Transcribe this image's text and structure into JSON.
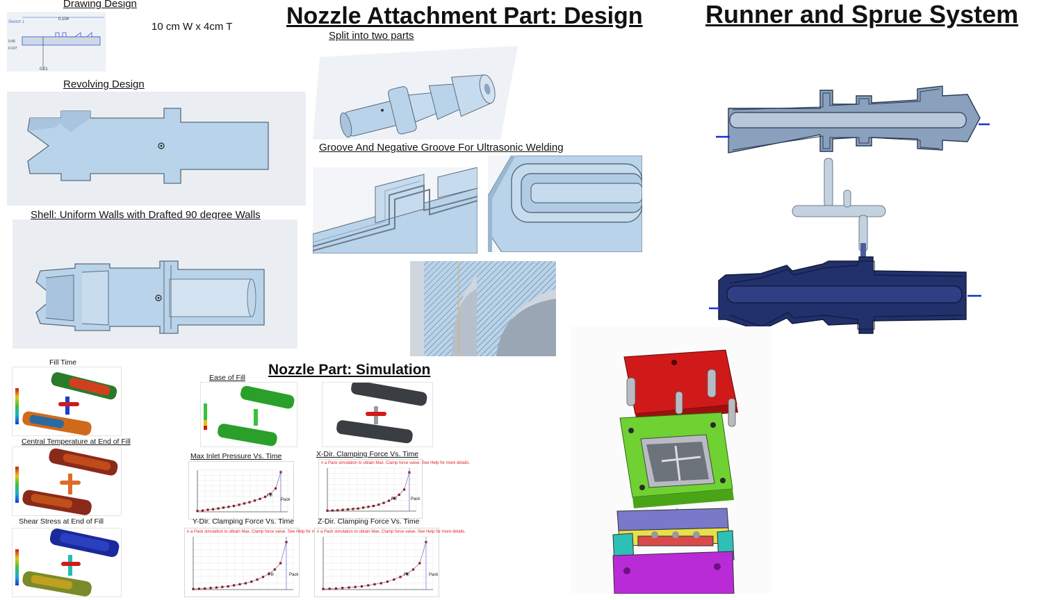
{
  "titles": {
    "nozzle_design": "Nozzle Attachment Part: Design",
    "runner": "Runner and Sprue System",
    "simulation": "Nozzle Part: Simulation"
  },
  "captions": {
    "drawing_design": "Drawing Design",
    "dimensions": "10 cm W x 4cm T",
    "revolving_design": "Revolving Design",
    "shell": "Shell: Uniform Walls with Drafted 90 degree Walls",
    "split": "Split into two parts",
    "groove": "Groove And Negative Groove For Ultrasonic Welding"
  },
  "sketch": {
    "label": "Sketch 1",
    "dim_top": "0.104",
    "dim_left": "0.05",
    "dim_bottom": "0.01",
    "dim_side": "0.107"
  },
  "simulation": {
    "fill_time": "Fill Time",
    "central_temp": "Central Temperature at End of Fill",
    "shear_stress": "Shear Stress at End of Fill",
    "ease_of_fill": "Ease of Fill",
    "max_inlet": "Max Inlet Pressure Vs. Time",
    "x_clamp": "X-Dir. Clamping Force Vs. Time",
    "y_clamp": "Y-Dir. Clamping Force Vs. Time",
    "z_clamp": "Z-Dir. Clamping Force Vs. Time",
    "warn_text": "n a Pack simulation to obtain Max. Clamp force value. See Help for more details.",
    "fill_label": "Fill",
    "pack_label": "Pack"
  },
  "colors": {
    "part_blue": "#b9d3ea",
    "part_edge": "#5a6b7c",
    "mold_red": "#d01a1a",
    "mold_green": "#6fd132",
    "mold_purple": "#9a2fd6",
    "runner_navy": "#22306b",
    "plot_dot": "#8b1a1a"
  },
  "chart_data": [
    {
      "type": "line",
      "title": "Max Inlet Pressure Vs. Time",
      "x": [
        0,
        1,
        2,
        3,
        4,
        5,
        6,
        7,
        8,
        9,
        10,
        11,
        12,
        13,
        14,
        15,
        16
      ],
      "values": [
        0.2,
        0.3,
        0.5,
        0.6,
        0.8,
        1.0,
        1.2,
        1.4,
        1.7,
        2.0,
        2.3,
        2.7,
        3.1,
        3.6,
        4.3,
        5.6,
        9.5
      ]
    },
    {
      "type": "line",
      "title": "X-Dir. Clamping Force Vs. Time",
      "x": [
        0,
        1,
        2,
        3,
        4,
        5,
        6,
        7,
        8,
        9,
        10,
        11,
        12,
        13,
        14,
        15,
        16
      ],
      "values": [
        0.1,
        0.15,
        0.2,
        0.3,
        0.4,
        0.5,
        0.6,
        0.8,
        1.0,
        1.2,
        1.5,
        1.9,
        2.4,
        3.0,
        3.8,
        5.0,
        9.0
      ]
    },
    {
      "type": "line",
      "title": "Y-Dir. Clamping Force Vs. Time",
      "x": [
        0,
        1,
        2,
        3,
        4,
        5,
        6,
        7,
        8,
        9,
        10,
        11,
        12,
        13,
        14,
        15,
        16
      ],
      "values": [
        0.1,
        0.15,
        0.2,
        0.3,
        0.4,
        0.5,
        0.6,
        0.8,
        1.0,
        1.2,
        1.5,
        1.9,
        2.4,
        3.0,
        3.8,
        5.0,
        9.0
      ]
    },
    {
      "type": "line",
      "title": "Z-Dir. Clamping Force Vs. Time",
      "x": [
        0,
        1,
        2,
        3,
        4,
        5,
        6,
        7,
        8,
        9,
        10,
        11,
        12,
        13,
        14,
        15,
        16
      ],
      "values": [
        0.1,
        0.15,
        0.2,
        0.3,
        0.4,
        0.5,
        0.6,
        0.8,
        1.0,
        1.2,
        1.5,
        1.9,
        2.4,
        3.0,
        3.8,
        5.0,
        9.0
      ]
    }
  ]
}
